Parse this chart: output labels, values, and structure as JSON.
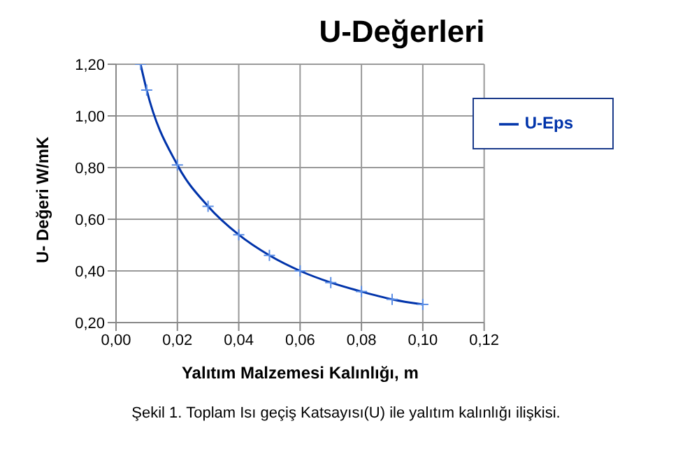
{
  "chart_data": {
    "type": "line",
    "title": "U-Değerleri",
    "xlabel": "Yalıtım Malzemesi Kalınlığı, m",
    "ylabel": "U- Değeri W/mK",
    "x": [
      0.008,
      0.01,
      0.02,
      0.03,
      0.04,
      0.05,
      0.06,
      0.07,
      0.08,
      0.09,
      0.1
    ],
    "series": [
      {
        "name": "U-Eps",
        "color": "#0033aa",
        "values": [
          1.2,
          1.1,
          0.81,
          0.65,
          0.54,
          0.46,
          0.4,
          0.355,
          0.32,
          0.29,
          0.27
        ]
      }
    ],
    "xlim": [
      0,
      0.12
    ],
    "xticks": [
      {
        "value": 0,
        "label": "0,00"
      },
      {
        "value": 0.02,
        "label": "0,02"
      },
      {
        "value": 0.04,
        "label": "0,04"
      },
      {
        "value": 0.06,
        "label": "0,06"
      },
      {
        "value": 0.08,
        "label": "0,08"
      },
      {
        "value": 0.1,
        "label": "0,10"
      },
      {
        "value": 0.12,
        "label": "0,12"
      }
    ],
    "ylim": [
      0.2,
      1.2
    ],
    "yticks": [
      {
        "value": 0.2,
        "label": "0,20"
      },
      {
        "value": 0.4,
        "label": "0,40"
      },
      {
        "value": 0.6,
        "label": "0,60"
      },
      {
        "value": 0.8,
        "label": "0,80"
      },
      {
        "value": 1.0,
        "label": "1,00"
      },
      {
        "value": 1.2,
        "label": "1,20"
      }
    ],
    "grid": true,
    "legend": "top right",
    "marker": "cross",
    "line_style": "solid",
    "annotations": [
      "Şekil 1. Toplam Isı geçiş Katsayısı(U) ile yalıtım kalınlığı ilişkisi."
    ]
  }
}
